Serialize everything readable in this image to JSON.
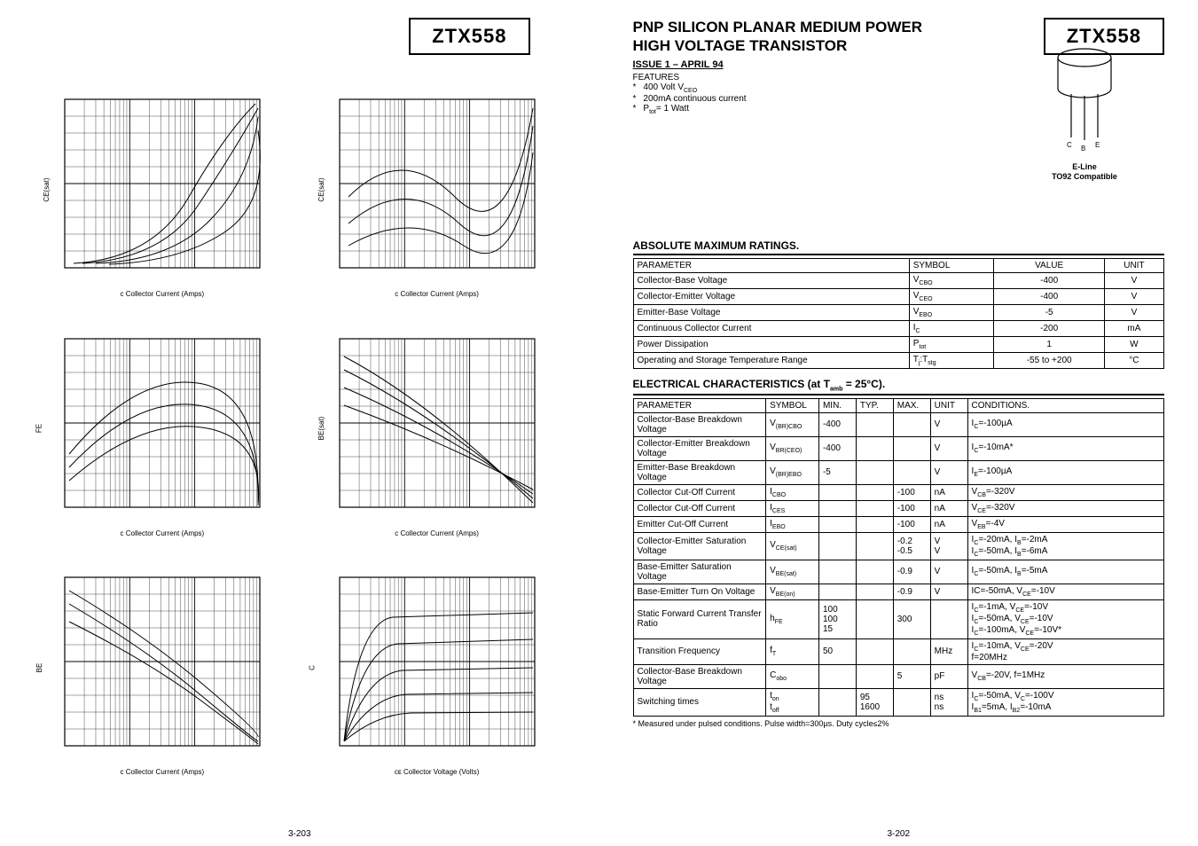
{
  "part_number": "ZTX558",
  "page_left_num": "3-203",
  "page_right_num": "3-202",
  "right": {
    "title_line1": "PNP SILICON PLANAR MEDIUM POWER",
    "title_line2": "HIGH VOLTAGE TRANSISTOR",
    "issue": "ISSUE 1 – APRIL 94",
    "features_label": "FEATURES",
    "features": [
      "400 Volt V<span class=\"sub\">CEO</span>",
      "200mA continuous current",
      "P<span class=\"sub\">tot</span>= 1 Watt"
    ],
    "package_label1": "E-Line",
    "package_label2": "TO92 Compatible",
    "abs_max_header": "ABSOLUTE MAXIMUM RATINGS.",
    "abs_max_columns": [
      "PARAMETER",
      "SYMBOL",
      "VALUE",
      "UNIT"
    ],
    "abs_max_rows": [
      [
        "Collector-Base Voltage",
        "V<span class=\"sub\">CBO</span>",
        "-400",
        "V"
      ],
      [
        "Collector-Emitter Voltage",
        "V<span class=\"sub\">CEO</span>",
        "-400",
        "V"
      ],
      [
        "Emitter-Base Voltage",
        "V<span class=\"sub\">EBO</span>",
        "-5",
        "V"
      ],
      [
        "Continuous Collector Current",
        "I<span class=\"sub\">C</span>",
        "-200",
        "mA"
      ],
      [
        "Power Dissipation",
        "P<span class=\"sub\">tot</span>",
        "1",
        "W"
      ],
      [
        "Operating and Storage Temperature Range",
        "T<span class=\"sub\">j</span>:T<span class=\"sub\">stg</span>",
        "-55 to +200",
        "°C"
      ]
    ],
    "elec_header": "ELECTRICAL CHARACTERISTICS (at T<span class=\"sub\">amb</span> = 25°C).",
    "elec_columns": [
      "PARAMETER",
      "SYMBOL",
      "MIN.",
      "TYP.",
      "MAX.",
      "UNIT",
      "CONDITIONS."
    ],
    "elec_rows": [
      [
        "Collector-Base Breakdown Voltage",
        "V<span class=\"sub\">(BR)CBO</span>",
        "-400",
        "",
        "",
        "V",
        "I<span class=\"sub\">C</span>=-100µA"
      ],
      [
        "Collector-Emitter Breakdown Voltage",
        "V<span class=\"sub\">BR(CEO)</span>",
        "-400",
        "",
        "",
        "V",
        "I<span class=\"sub\">C</span>=-10mA*"
      ],
      [
        "Emitter-Base Breakdown Voltage",
        "V<span class=\"sub\">(BR)EBO</span>",
        "-5",
        "",
        "",
        "V",
        "I<span class=\"sub\">E</span>=-100µA"
      ],
      [
        "Collector Cut-Off Current",
        "I<span class=\"sub\">CBO</span>",
        "",
        "",
        "-100",
        "nA",
        "V<span class=\"sub\">CB</span>=-320V"
      ],
      [
        "Collector Cut-Off Current",
        "I<span class=\"sub\">CES</span>",
        "",
        "",
        "-100",
        "nA",
        "V<span class=\"sub\">CE</span>=-320V"
      ],
      [
        "Emitter Cut-Off Current",
        "I<span class=\"sub\">EBO</span>",
        "",
        "",
        "-100",
        "nA",
        "V<span class=\"sub\">EB</span>=-4V"
      ],
      [
        "Collector-Emitter Saturation Voltage",
        "V<span class=\"sub\">CE(sat)</span>",
        "",
        "",
        "-0.2<br>-0.5",
        "V<br>V",
        "I<span class=\"sub\">C</span>=-20mA, I<span class=\"sub\">B</span>=-2mA<br>I<span class=\"sub\">C</span>=-50mA, I<span class=\"sub\">B</span>=-6mA"
      ],
      [
        "Base-Emitter Saturation Voltage",
        "V<span class=\"sub\">BE(sat)</span>",
        "",
        "",
        "-0.9",
        "V",
        "I<span class=\"sub\">C</span>=-50mA, I<span class=\"sub\">B</span>=-5mA"
      ],
      [
        "Base-Emitter Turn On Voltage",
        "V<span class=\"sub\">BE(on)</span>",
        "",
        "",
        "-0.9",
        "V",
        "IC=-50mA, V<span class=\"sub\">CE</span>=-10V"
      ],
      [
        "Static Forward Current Transfer Ratio",
        "h<span class=\"sub\">FE</span>",
        "100<br>100<br>15",
        "",
        "300",
        "",
        "I<span class=\"sub\">C</span>=-1mA, V<span class=\"sub\">CE</span>=-10V<br>I<span class=\"sub\">C</span>=-50mA, V<span class=\"sub\">CE</span>=-10V<br>I<span class=\"sub\">C</span>=-100mA, V<span class=\"sub\">CE</span>=-10V*"
      ],
      [
        "Transition Frequency",
        "f<span class=\"sub\">T</span>",
        "50",
        "",
        "",
        "MHz",
        "I<span class=\"sub\">C</span>=-10mA, V<span class=\"sub\">CE</span>=-20V<br>f=20MHz"
      ],
      [
        "Collector-Base Breakdown Voltage",
        "C<span class=\"sub\">obo</span>",
        "",
        "",
        "5",
        "pF",
        "V<span class=\"sub\">CB</span>=-20V, f=1MHz"
      ],
      [
        "Switching times",
        "t<span class=\"sub\">on</span><br>t<span class=\"sub\">off</span>",
        "",
        "95<br>1600",
        "",
        "ns<br>ns",
        "I<span class=\"sub\">C</span>=-50mA, V<span class=\"sub\">C</span>=-100V<br>I<span class=\"sub\">B1</span>=5mA, I<span class=\"sub\">B2</span>=-10mA"
      ]
    ],
    "footnote": "* Measured under pulsed conditions. Pulse width=300µs. Duty cycle≤2%"
  },
  "charts": {
    "xlabel_cc": "c  Collector Current (Amps)",
    "xlabel_cv": "ᴄᴇ  Collector Voltage (Volts)",
    "ylabels": [
      "CE(sat)",
      "CE(sat)",
      "FE",
      "BE(sat)",
      "BE",
      "C"
    ],
    "grid_color": "#000000",
    "bg_color": "#ffffff",
    "stroke_width": 0.6,
    "frame_color": "#000000"
  }
}
